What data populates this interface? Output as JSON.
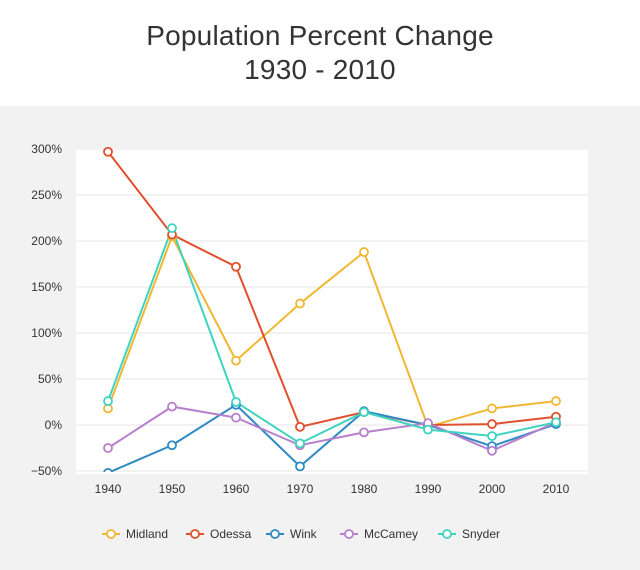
{
  "chart_data": {
    "type": "line",
    "title": [
      "Population Percent Change",
      "1930 - 2010"
    ],
    "xlabel": "",
    "ylabel": "",
    "categories": [
      "1940",
      "1950",
      "1960",
      "1970",
      "1980",
      "1990",
      "2000",
      "2010"
    ],
    "ylim": [
      -50,
      300
    ],
    "yticks": [
      300,
      250,
      200,
      150,
      100,
      50,
      0,
      -50
    ],
    "ytick_labels": [
      "300%",
      "250%",
      "200%",
      "150%",
      "100%",
      "50%",
      "0%",
      "−50%"
    ],
    "grid": true,
    "legend_position": "bottom",
    "series": [
      {
        "name": "Midland",
        "color": "#f0b731",
        "values": [
          18,
          205,
          70,
          132,
          188,
          -2,
          18,
          26
        ]
      },
      {
        "name": "Odessa",
        "color": "#e0502c",
        "values": [
          297,
          207,
          172,
          -2,
          14,
          0,
          1,
          9
        ]
      },
      {
        "name": "Wink",
        "color": "#2f8ac4",
        "values": [
          -52,
          -22,
          22,
          -45,
          15,
          0,
          -23,
          1
        ]
      },
      {
        "name": "McCamey",
        "color": "#b77fcc",
        "values": [
          -25,
          20,
          8,
          -22,
          -8,
          2,
          -28,
          3
        ]
      },
      {
        "name": "Snyder",
        "color": "#3fd3c0",
        "values": [
          26,
          214,
          25,
          -20,
          14,
          -5,
          -12,
          3
        ]
      }
    ]
  }
}
